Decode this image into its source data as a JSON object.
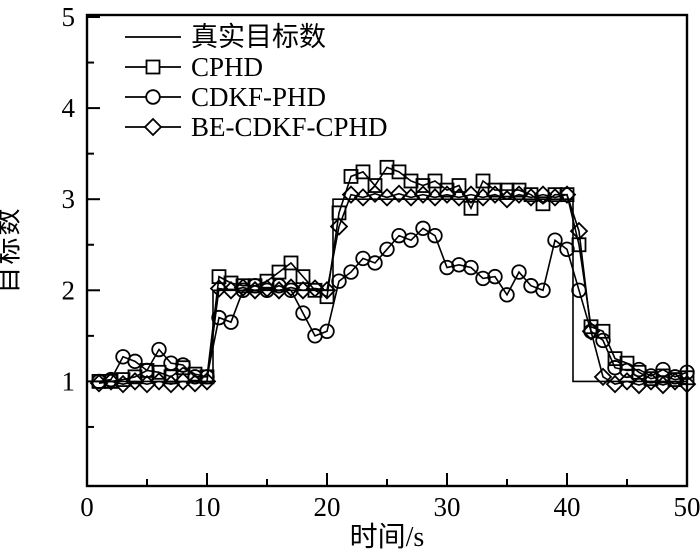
{
  "figure": {
    "x_axis_title": "时间/s",
    "y_axis_title": "目标数",
    "line_color": "#000000",
    "background_color": "#ffffff"
  },
  "chart_data": {
    "type": "line",
    "title": "",
    "xlabel": "时间/s",
    "ylabel": "目标数",
    "xlim": [
      0,
      50
    ],
    "ylim": [
      -0.15,
      5.02
    ],
    "x_major_ticks": [
      0,
      10,
      20,
      30,
      40,
      50
    ],
    "x_minor_ticks": [
      5,
      15,
      25,
      35,
      45
    ],
    "y_major_ticks": [
      1,
      2,
      3,
      4,
      5
    ],
    "y_minor_ticks": [
      0.5,
      1.5,
      2.5,
      3.5,
      4.5
    ],
    "grid": false,
    "legend_position": "top-left-inside",
    "x": [
      1,
      2,
      3,
      4,
      5,
      6,
      7,
      8,
      9,
      10,
      11,
      12,
      13,
      14,
      15,
      16,
      17,
      18,
      19,
      20,
      21,
      22,
      23,
      24,
      25,
      26,
      27,
      28,
      29,
      30,
      31,
      32,
      33,
      34,
      35,
      36,
      37,
      38,
      39,
      40,
      41,
      42,
      43,
      44,
      45,
      46,
      47,
      48,
      49,
      50
    ],
    "series": [
      {
        "name": "真实目标数",
        "marker": "none",
        "line": "solid",
        "step": true,
        "values": [
          1,
          1,
          1,
          1,
          1,
          1,
          1,
          1,
          1,
          1,
          2,
          2,
          2,
          2,
          2,
          2,
          2,
          2,
          2,
          2,
          3,
          3,
          3,
          3,
          3,
          3,
          3,
          3,
          3,
          3,
          3,
          3,
          3,
          3,
          3,
          3,
          3,
          3,
          3,
          3,
          1,
          1,
          1,
          1,
          1,
          1,
          1,
          1,
          1,
          1
        ]
      },
      {
        "name": "CPHD",
        "marker": "square",
        "line": "solid",
        "step": false,
        "values": [
          1.0,
          1.0,
          1.02,
          1.05,
          1.12,
          1.1,
          1.05,
          1.15,
          1.08,
          1.05,
          2.15,
          2.08,
          2.05,
          2.05,
          2.1,
          2.2,
          2.3,
          2.15,
          2.0,
          1.93,
          2.85,
          3.25,
          3.3,
          3.15,
          3.35,
          3.3,
          3.2,
          3.15,
          3.2,
          3.1,
          3.15,
          2.9,
          3.2,
          3.1,
          3.1,
          3.1,
          3.05,
          2.95,
          3.05,
          3.05,
          2.5,
          1.6,
          1.55,
          1.25,
          1.2,
          1.1,
          1.03,
          1.06,
          1.02,
          1.04
        ]
      },
      {
        "name": "CDKF-PHD",
        "marker": "circle",
        "line": "solid",
        "step": false,
        "values": [
          1.0,
          1.02,
          1.27,
          1.22,
          1.12,
          1.35,
          1.2,
          1.18,
          1.05,
          1.05,
          1.7,
          1.65,
          2.0,
          2.05,
          2.0,
          2.05,
          2.0,
          1.75,
          1.5,
          1.55,
          2.1,
          2.2,
          2.35,
          2.3,
          2.45,
          2.6,
          2.55,
          2.68,
          2.6,
          2.25,
          2.28,
          2.25,
          2.13,
          2.15,
          1.95,
          2.2,
          2.05,
          2.0,
          2.55,
          2.45,
          2.0,
          1.55,
          1.45,
          1.15,
          1.12,
          1.13,
          1.06,
          1.13,
          1.05,
          1.1
        ]
      },
      {
        "name": "BE-CDKF-CPHD",
        "marker": "diamond",
        "line": "solid",
        "step": false,
        "values": [
          0.98,
          1.0,
          0.97,
          1.0,
          0.97,
          1.0,
          0.97,
          1.0,
          0.98,
          1.0,
          2.02,
          2.0,
          2.03,
          2.0,
          2.02,
          2.0,
          2.03,
          2.0,
          2.02,
          2.0,
          2.7,
          3.05,
          3.02,
          3.06,
          3.02,
          3.06,
          3.02,
          3.05,
          3.02,
          3.05,
          3.02,
          3.05,
          3.02,
          3.05,
          3.0,
          3.05,
          3.02,
          3.05,
          3.02,
          3.05,
          2.65,
          1.55,
          1.05,
          0.97,
          1.0,
          0.96,
          1.0,
          0.96,
          1.0,
          0.97
        ]
      }
    ]
  }
}
